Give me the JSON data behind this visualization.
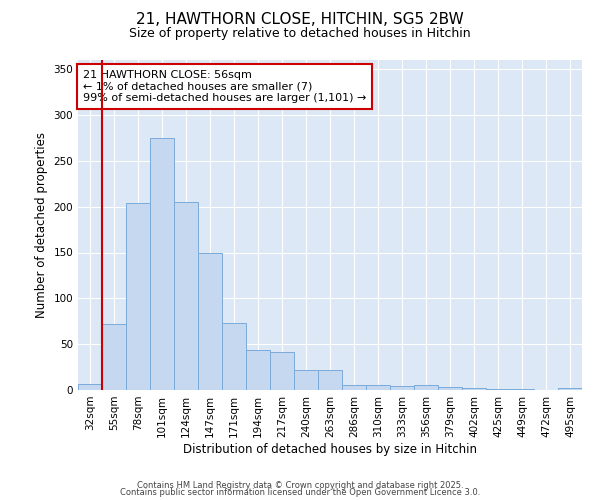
{
  "title_line1": "21, HAWTHORN CLOSE, HITCHIN, SG5 2BW",
  "title_line2": "Size of property relative to detached houses in Hitchin",
  "xlabel": "Distribution of detached houses by size in Hitchin",
  "ylabel": "Number of detached properties",
  "bar_labels": [
    "32sqm",
    "55sqm",
    "78sqm",
    "101sqm",
    "124sqm",
    "147sqm",
    "171sqm",
    "194sqm",
    "217sqm",
    "240sqm",
    "263sqm",
    "286sqm",
    "310sqm",
    "333sqm",
    "356sqm",
    "379sqm",
    "402sqm",
    "425sqm",
    "449sqm",
    "472sqm",
    "495sqm"
  ],
  "bar_values": [
    7,
    72,
    204,
    275,
    205,
    149,
    73,
    44,
    41,
    22,
    22,
    6,
    5,
    4,
    5,
    3,
    2,
    1,
    1,
    0,
    2
  ],
  "bar_color": "#c5d8f0",
  "bar_edge_color": "#7aabdb",
  "vline_x_index": 1,
  "vline_color": "#cc0000",
  "annotation_text": "21 HAWTHORN CLOSE: 56sqm\n← 1% of detached houses are smaller (7)\n99% of semi-detached houses are larger (1,101) →",
  "annotation_box_color": "#ffffff",
  "annotation_box_edge": "#cc0000",
  "ylim": [
    0,
    360
  ],
  "yticks": [
    0,
    50,
    100,
    150,
    200,
    250,
    300,
    350
  ],
  "fig_bg_color": "#ffffff",
  "plot_bg_color": "#dce8f5",
  "grid_color": "#ffffff",
  "footer_line1": "Contains HM Land Registry data © Crown copyright and database right 2025.",
  "footer_line2": "Contains public sector information licensed under the Open Government Licence 3.0."
}
